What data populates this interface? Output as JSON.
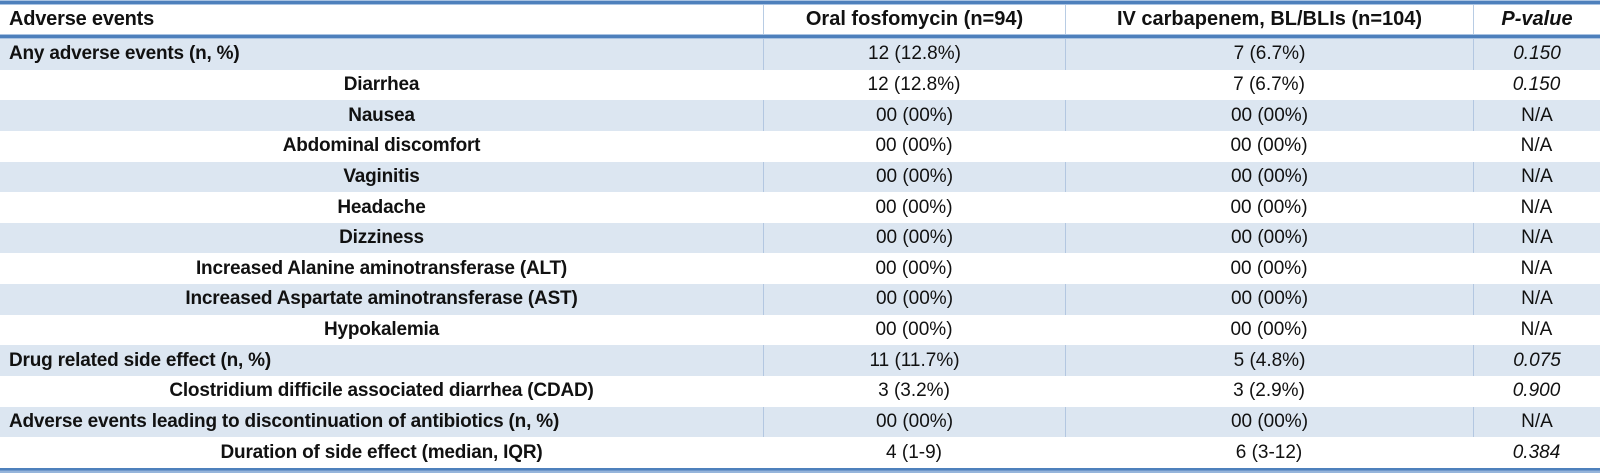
{
  "colors": {
    "accent_dark": "#4e80bc",
    "accent_light_edge": "#a9c3e2",
    "band_fill": "#dce6f1",
    "column_separator": "#b8cce4",
    "text": "#111111"
  },
  "table": {
    "columns": [
      {
        "label": "Adverse events"
      },
      {
        "label": "Oral fosfomycin (n=94)"
      },
      {
        "label": "IV carbapenem, BL/BLIs (n=104)"
      },
      {
        "label": "P-value"
      }
    ],
    "rows": [
      {
        "label": "Any adverse events (n, %)",
        "align": "left",
        "fosfomycin": "12 (12.8%)",
        "carbapenem": "7 (6.7%)",
        "p_value": "0.150"
      },
      {
        "label": "Diarrhea",
        "align": "center",
        "fosfomycin": "12 (12.8%)",
        "carbapenem": "7 (6.7%)",
        "p_value": "0.150"
      },
      {
        "label": "Nausea",
        "align": "center",
        "fosfomycin": "00 (00%)",
        "carbapenem": "00 (00%)",
        "p_value": "N/A"
      },
      {
        "label": "Abdominal discomfort",
        "align": "center",
        "fosfomycin": "00 (00%)",
        "carbapenem": "00 (00%)",
        "p_value": "N/A"
      },
      {
        "label": "Vaginitis",
        "align": "center",
        "fosfomycin": "00 (00%)",
        "carbapenem": "00 (00%)",
        "p_value": "N/A"
      },
      {
        "label": "Headache",
        "align": "center",
        "fosfomycin": "00 (00%)",
        "carbapenem": "00 (00%)",
        "p_value": "N/A"
      },
      {
        "label": "Dizziness",
        "align": "center",
        "fosfomycin": "00 (00%)",
        "carbapenem": "00 (00%)",
        "p_value": "N/A"
      },
      {
        "label": "Increased Alanine aminotransferase (ALT)",
        "align": "center",
        "fosfomycin": "00 (00%)",
        "carbapenem": "00 (00%)",
        "p_value": "N/A"
      },
      {
        "label": "Increased Aspartate aminotransferase (AST)",
        "align": "center",
        "fosfomycin": "00 (00%)",
        "carbapenem": "00 (00%)",
        "p_value": "N/A"
      },
      {
        "label": "Hypokalemia",
        "align": "center",
        "fosfomycin": "00 (00%)",
        "carbapenem": "00 (00%)",
        "p_value": "N/A"
      },
      {
        "label": "Drug related side effect (n, %)",
        "align": "left",
        "fosfomycin": "11 (11.7%)",
        "carbapenem": "5 (4.8%)",
        "p_value": "0.075"
      },
      {
        "label": "Clostridium difficile associated diarrhea (CDAD)",
        "align": "center",
        "fosfomycin": "3 (3.2%)",
        "carbapenem": "3 (2.9%)",
        "p_value": "0.900"
      },
      {
        "label": "Adverse events leading to discontinuation of antibiotics (n, %)",
        "align": "left",
        "fosfomycin": "00 (00%)",
        "carbapenem": "00 (00%)",
        "p_value": "N/A"
      },
      {
        "label": "Duration of side effect (median, IQR)",
        "align": "center",
        "fosfomycin": "4 (1-9)",
        "carbapenem": "6 (3-12)",
        "p_value": "0.384"
      }
    ]
  }
}
